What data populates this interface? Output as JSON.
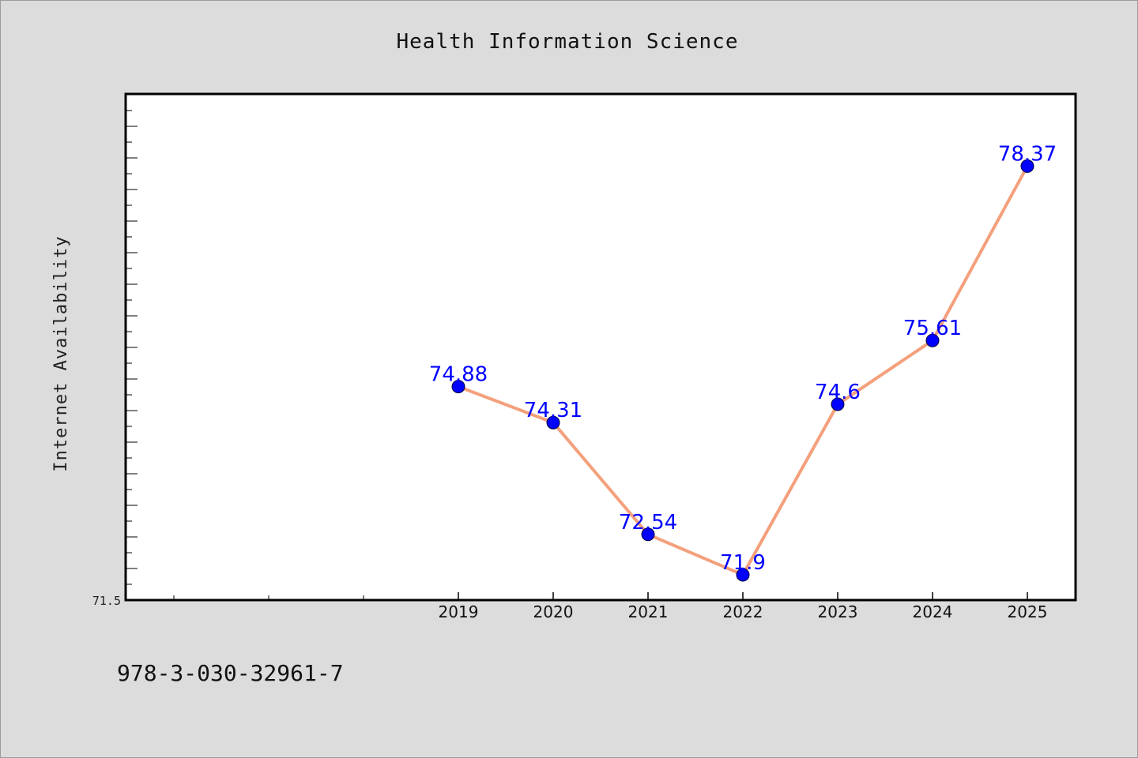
{
  "chart_data": {
    "type": "line",
    "title": "Health Information Science",
    "xlabel": "",
    "ylabel": "Internet Availability",
    "categories": [
      "2019",
      "2020",
      "2021",
      "2022",
      "2023",
      "2024",
      "2025"
    ],
    "series": [
      {
        "values": [
          74.88,
          74.31,
          72.54,
          71.9,
          74.6,
          75.61,
          78.37
        ],
        "data_labels": [
          "74.88",
          "74.31",
          "72.54",
          "71.9",
          "74.6",
          "75.61",
          "78.37"
        ]
      }
    ],
    "ylim": [
      71.5,
      79.5
    ],
    "yticks_labeled": [
      "71.5"
    ],
    "grid": false,
    "legend": "none",
    "colors": {
      "line": "#f4a07c",
      "marker": "#0000ff",
      "data_label": "#0000ff",
      "background": "#dcdcdc",
      "plot_background": "#ffffff"
    }
  },
  "footer": {
    "isbn": "978-3-030-32961-7"
  }
}
